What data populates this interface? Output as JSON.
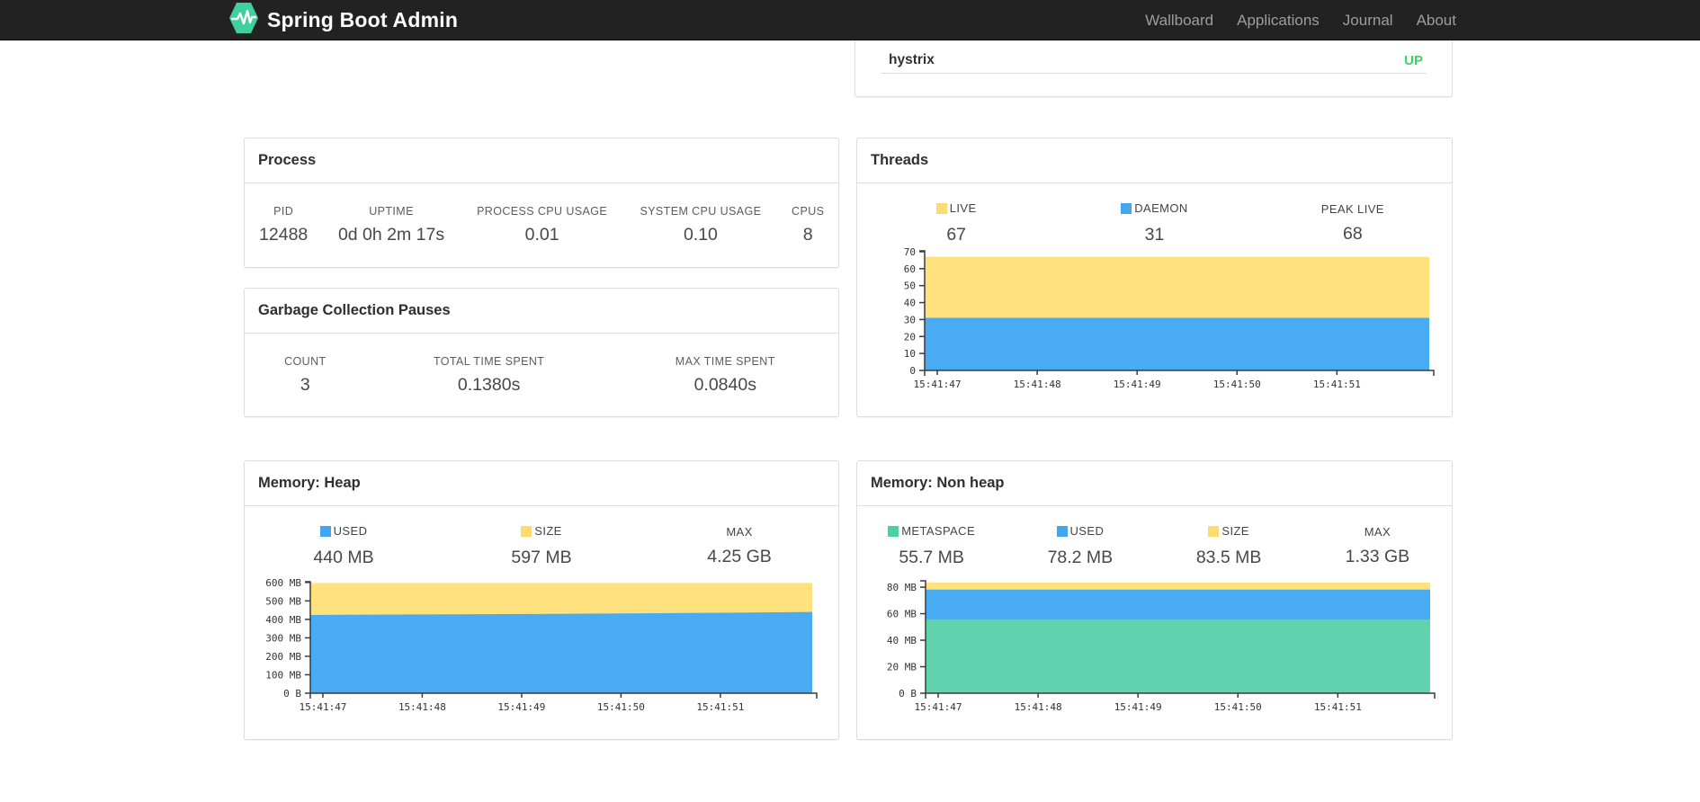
{
  "navbar": {
    "brand": "Spring Boot Admin",
    "items": [
      {
        "label": "Wallboard"
      },
      {
        "label": "Applications"
      },
      {
        "label": "Journal"
      },
      {
        "label": "About"
      }
    ]
  },
  "application_status": {
    "name": "hystrix",
    "status": "UP",
    "status_color": "#3ed164"
  },
  "panels": {
    "process": {
      "title": "Process",
      "stats": [
        {
          "label": "PID",
          "value": "12488"
        },
        {
          "label": "UPTIME",
          "value": "0d 0h 2m 17s"
        },
        {
          "label": "PROCESS CPU USAGE",
          "value": "0.01"
        },
        {
          "label": "SYSTEM CPU USAGE",
          "value": "0.10"
        },
        {
          "label": "CPUS",
          "value": "8"
        }
      ]
    },
    "gc": {
      "title": "Garbage Collection Pauses",
      "stats": [
        {
          "label": "COUNT",
          "value": "3"
        },
        {
          "label": "TOTAL TIME SPENT",
          "value": "0.1380s"
        },
        {
          "label": "MAX TIME SPENT",
          "value": "0.0840s"
        }
      ]
    },
    "threads": {
      "title": "Threads",
      "legend": [
        {
          "label": "LIVE",
          "value": "67",
          "color": "#fcdc71"
        },
        {
          "label": "DAEMON",
          "value": "31",
          "color": "#42a7f0"
        },
        {
          "label": "PEAK LIVE",
          "value": "68",
          "color": null
        }
      ]
    },
    "memory_heap": {
      "title": "Memory: Heap",
      "legend": [
        {
          "label": "USED",
          "value": "440 MB",
          "color": "#42a7f0"
        },
        {
          "label": "SIZE",
          "value": "597 MB",
          "color": "#fcdc71"
        },
        {
          "label": "MAX",
          "value": "4.25 GB",
          "color": null
        }
      ]
    },
    "memory_nonheap": {
      "title": "Memory: Non heap",
      "legend": [
        {
          "label": "METASPACE",
          "value": "55.7 MB",
          "color": "#4fd0a4"
        },
        {
          "label": "USED",
          "value": "78.2 MB",
          "color": "#42a7f0"
        },
        {
          "label": "SIZE",
          "value": "83.5 MB",
          "color": "#fcdc71"
        },
        {
          "label": "MAX",
          "value": "1.33 GB",
          "color": null
        }
      ]
    }
  },
  "chart_data": [
    {
      "id": "threads",
      "type": "area",
      "title": "Threads",
      "stacked": true,
      "grid": false,
      "legend_position": "top",
      "x_ticks": [
        "15:41:47",
        "15:41:48",
        "15:41:49",
        "15:41:50",
        "15:41:51"
      ],
      "y_ticks": [
        {
          "v": 0,
          "label": "0"
        },
        {
          "v": 10,
          "label": "10"
        },
        {
          "v": 20,
          "label": "20"
        },
        {
          "v": 30,
          "label": "30"
        },
        {
          "v": 40,
          "label": "40"
        },
        {
          "v": 50,
          "label": "50"
        },
        {
          "v": 60,
          "label": "60"
        },
        {
          "v": 70,
          "label": "70"
        }
      ],
      "ylim": [
        0,
        70.5
      ],
      "series": [
        {
          "name": "DAEMON",
          "color": "#49abf1",
          "cumulative_top": [
            31,
            31
          ]
        },
        {
          "name": "LIVE",
          "color": "#ffe17e",
          "cumulative_top": [
            67,
            67
          ]
        }
      ]
    },
    {
      "id": "memory-heap",
      "type": "area",
      "title": "Memory: Heap",
      "stacked": true,
      "grid": false,
      "legend_position": "top",
      "x_ticks": [
        "15:41:47",
        "15:41:48",
        "15:41:49",
        "15:41:50",
        "15:41:51"
      ],
      "y_ticks": [
        {
          "v": 0,
          "label": "0 B"
        },
        {
          "v": 100,
          "label": "100 MB"
        },
        {
          "v": 200,
          "label": "200 MB"
        },
        {
          "v": 300,
          "label": "300 MB"
        },
        {
          "v": 400,
          "label": "400 MB"
        },
        {
          "v": 500,
          "label": "500 MB"
        },
        {
          "v": 600,
          "label": "600 MB"
        }
      ],
      "ylim": [
        0,
        604
      ],
      "ylabel_unit": "MB",
      "series": [
        {
          "name": "USED",
          "color": "#49abf1",
          "cumulative_top": [
            424,
            426,
            428,
            430,
            433,
            436,
            440
          ]
        },
        {
          "name": "SIZE",
          "color": "#ffe17e",
          "cumulative_top": [
            597,
            597
          ]
        }
      ]
    },
    {
      "id": "memory-nonheap",
      "type": "area",
      "title": "Memory: Non heap",
      "stacked": true,
      "grid": false,
      "legend_position": "top",
      "x_ticks": [
        "15:41:47",
        "15:41:48",
        "15:41:49",
        "15:41:50",
        "15:41:51"
      ],
      "y_ticks": [
        {
          "v": 0,
          "label": "0 B"
        },
        {
          "v": 20,
          "label": "20 MB"
        },
        {
          "v": 40,
          "label": "40 MB"
        },
        {
          "v": 60,
          "label": "60 MB"
        },
        {
          "v": 80,
          "label": "80 MB"
        }
      ],
      "ylim": [
        0,
        84.8
      ],
      "ylabel_unit": "MB",
      "series": [
        {
          "name": "METASPACE",
          "color": "#60d3ae",
          "cumulative_top": [
            55.7,
            55.7
          ]
        },
        {
          "name": "USED",
          "color": "#49abf1",
          "cumulative_top": [
            78.2,
            78.2
          ]
        },
        {
          "name": "SIZE",
          "color": "#ffe17e",
          "cumulative_top": [
            83.5,
            83.5
          ]
        }
      ]
    }
  ]
}
